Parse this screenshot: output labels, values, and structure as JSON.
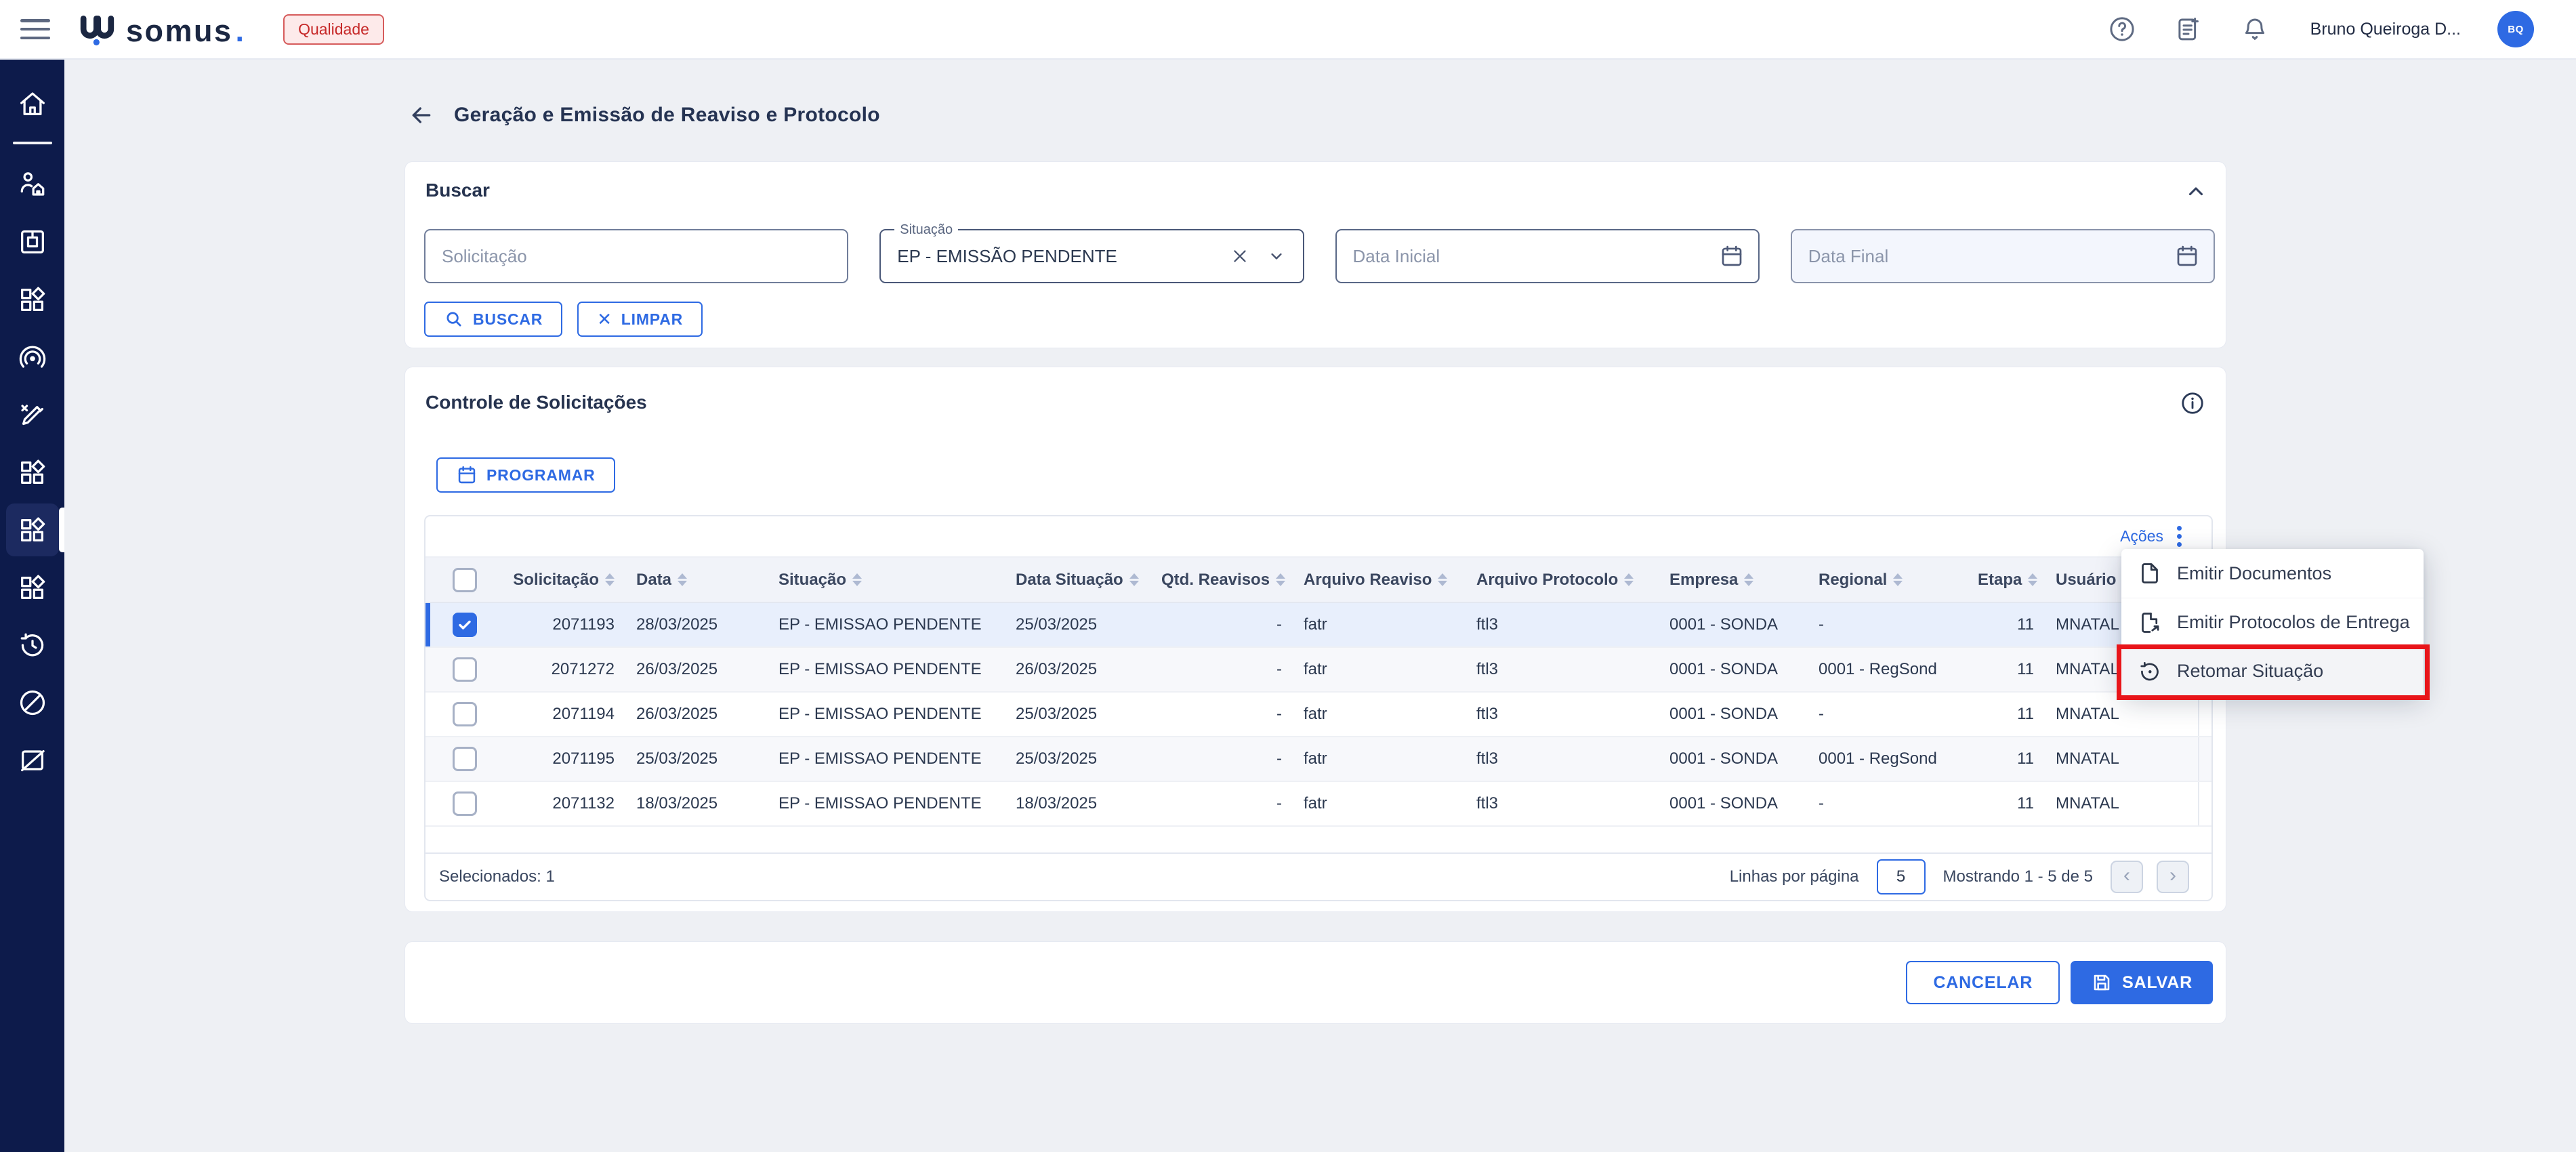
{
  "header": {
    "brand": "somus",
    "brand_dot": ".",
    "badge": "Qualidade",
    "user_name": "Bruno Queiroga D...",
    "user_initials": "BQ"
  },
  "sidebar": {
    "items": [
      "home",
      "clients",
      "package",
      "apps-1",
      "radar",
      "editor",
      "apps-2",
      "apps-3",
      "apps-4",
      "history",
      "blocked",
      "no-image"
    ],
    "active_item": "apps-3"
  },
  "page": {
    "title": "Geração e Emissão de Reaviso e Protocolo"
  },
  "search_card": {
    "title": "Buscar",
    "solicitacao_placeholder": "Solicitação",
    "situacao_label": "Situação",
    "situacao_value": "EP - EMISSÃO PENDENTE",
    "data_inicial_placeholder": "Data Inicial",
    "data_final_placeholder": "Data Final",
    "buscar_label": "BUSCAR",
    "limpar_label": "LIMPAR"
  },
  "control_card": {
    "title": "Controle de Solicitações",
    "programar_label": "PROGRAMAR",
    "acoes_label": "Ações",
    "table": {
      "columns": [
        {
          "label": "Solicitação",
          "align": "right"
        },
        {
          "label": "Data",
          "align": "left"
        },
        {
          "label": "Situação",
          "align": "left"
        },
        {
          "label": "Data Situação",
          "align": "left"
        },
        {
          "label": "Qtd. Reavisos",
          "align": "right"
        },
        {
          "label": "Arquivo Reaviso",
          "align": "left"
        },
        {
          "label": "Arquivo Protocolo",
          "align": "left"
        },
        {
          "label": "Empresa",
          "align": "left"
        },
        {
          "label": "Regional",
          "align": "left"
        },
        {
          "label": "Etapa",
          "align": "right"
        },
        {
          "label": "Usuário",
          "align": "left"
        }
      ],
      "rows": [
        {
          "checked": true,
          "cells": [
            "2071193",
            "28/03/2025",
            "EP - EMISSAO PENDENTE",
            "25/03/2025",
            "-",
            "fatr",
            "ftl3",
            "0001 - SONDA",
            "-",
            "11",
            "MNATAL"
          ]
        },
        {
          "checked": false,
          "cells": [
            "2071272",
            "26/03/2025",
            "EP - EMISSAO PENDENTE",
            "26/03/2025",
            "-",
            "fatr",
            "ftl3",
            "0001 - SONDA",
            "0001 - RegSond",
            "11",
            "MNATAL"
          ]
        },
        {
          "checked": false,
          "cells": [
            "2071194",
            "26/03/2025",
            "EP - EMISSAO PENDENTE",
            "25/03/2025",
            "-",
            "fatr",
            "ftl3",
            "0001 - SONDA",
            "-",
            "11",
            "MNATAL"
          ]
        },
        {
          "checked": false,
          "cells": [
            "2071195",
            "25/03/2025",
            "EP - EMISSAO PENDENTE",
            "25/03/2025",
            "-",
            "fatr",
            "ftl3",
            "0001 - SONDA",
            "0001 - RegSond",
            "11",
            "MNATAL"
          ]
        },
        {
          "checked": false,
          "cells": [
            "2071132",
            "18/03/2025",
            "EP - EMISSAO PENDENTE",
            "18/03/2025",
            "-",
            "fatr",
            "ftl3",
            "0001 - SONDA",
            "-",
            "11",
            "MNATAL"
          ]
        }
      ]
    },
    "footer": {
      "selected_text": "Selecionados: 1",
      "rows_per_page_label": "Linhas por página",
      "rows_per_page_value": "5",
      "showing_text": "Mostrando 1 - 5 de 5",
      "prev_icon": "chevron-left-icon",
      "next_icon": "chevron-right-icon"
    }
  },
  "actions_bar": {
    "cancel_label": "CANCELAR",
    "save_label": "SALVAR"
  },
  "context_menu": {
    "items": [
      {
        "label": "Emitir Documentos",
        "icon": "document-icon",
        "highlighted": false
      },
      {
        "label": "Emitir Protocolos de Entrega",
        "icon": "document-export-icon",
        "highlighted": false
      },
      {
        "label": "Retomar Situação",
        "icon": "history-icon",
        "highlighted": true
      }
    ],
    "annotation": "red-highlight-box"
  },
  "colors": {
    "primary_blue": "#2e6ae3",
    "sidebar_navy": "#0d1b4b",
    "annotation_red": "#e8151a",
    "badge_red": "#c62828",
    "selected_row_bg": "#e8effc"
  }
}
